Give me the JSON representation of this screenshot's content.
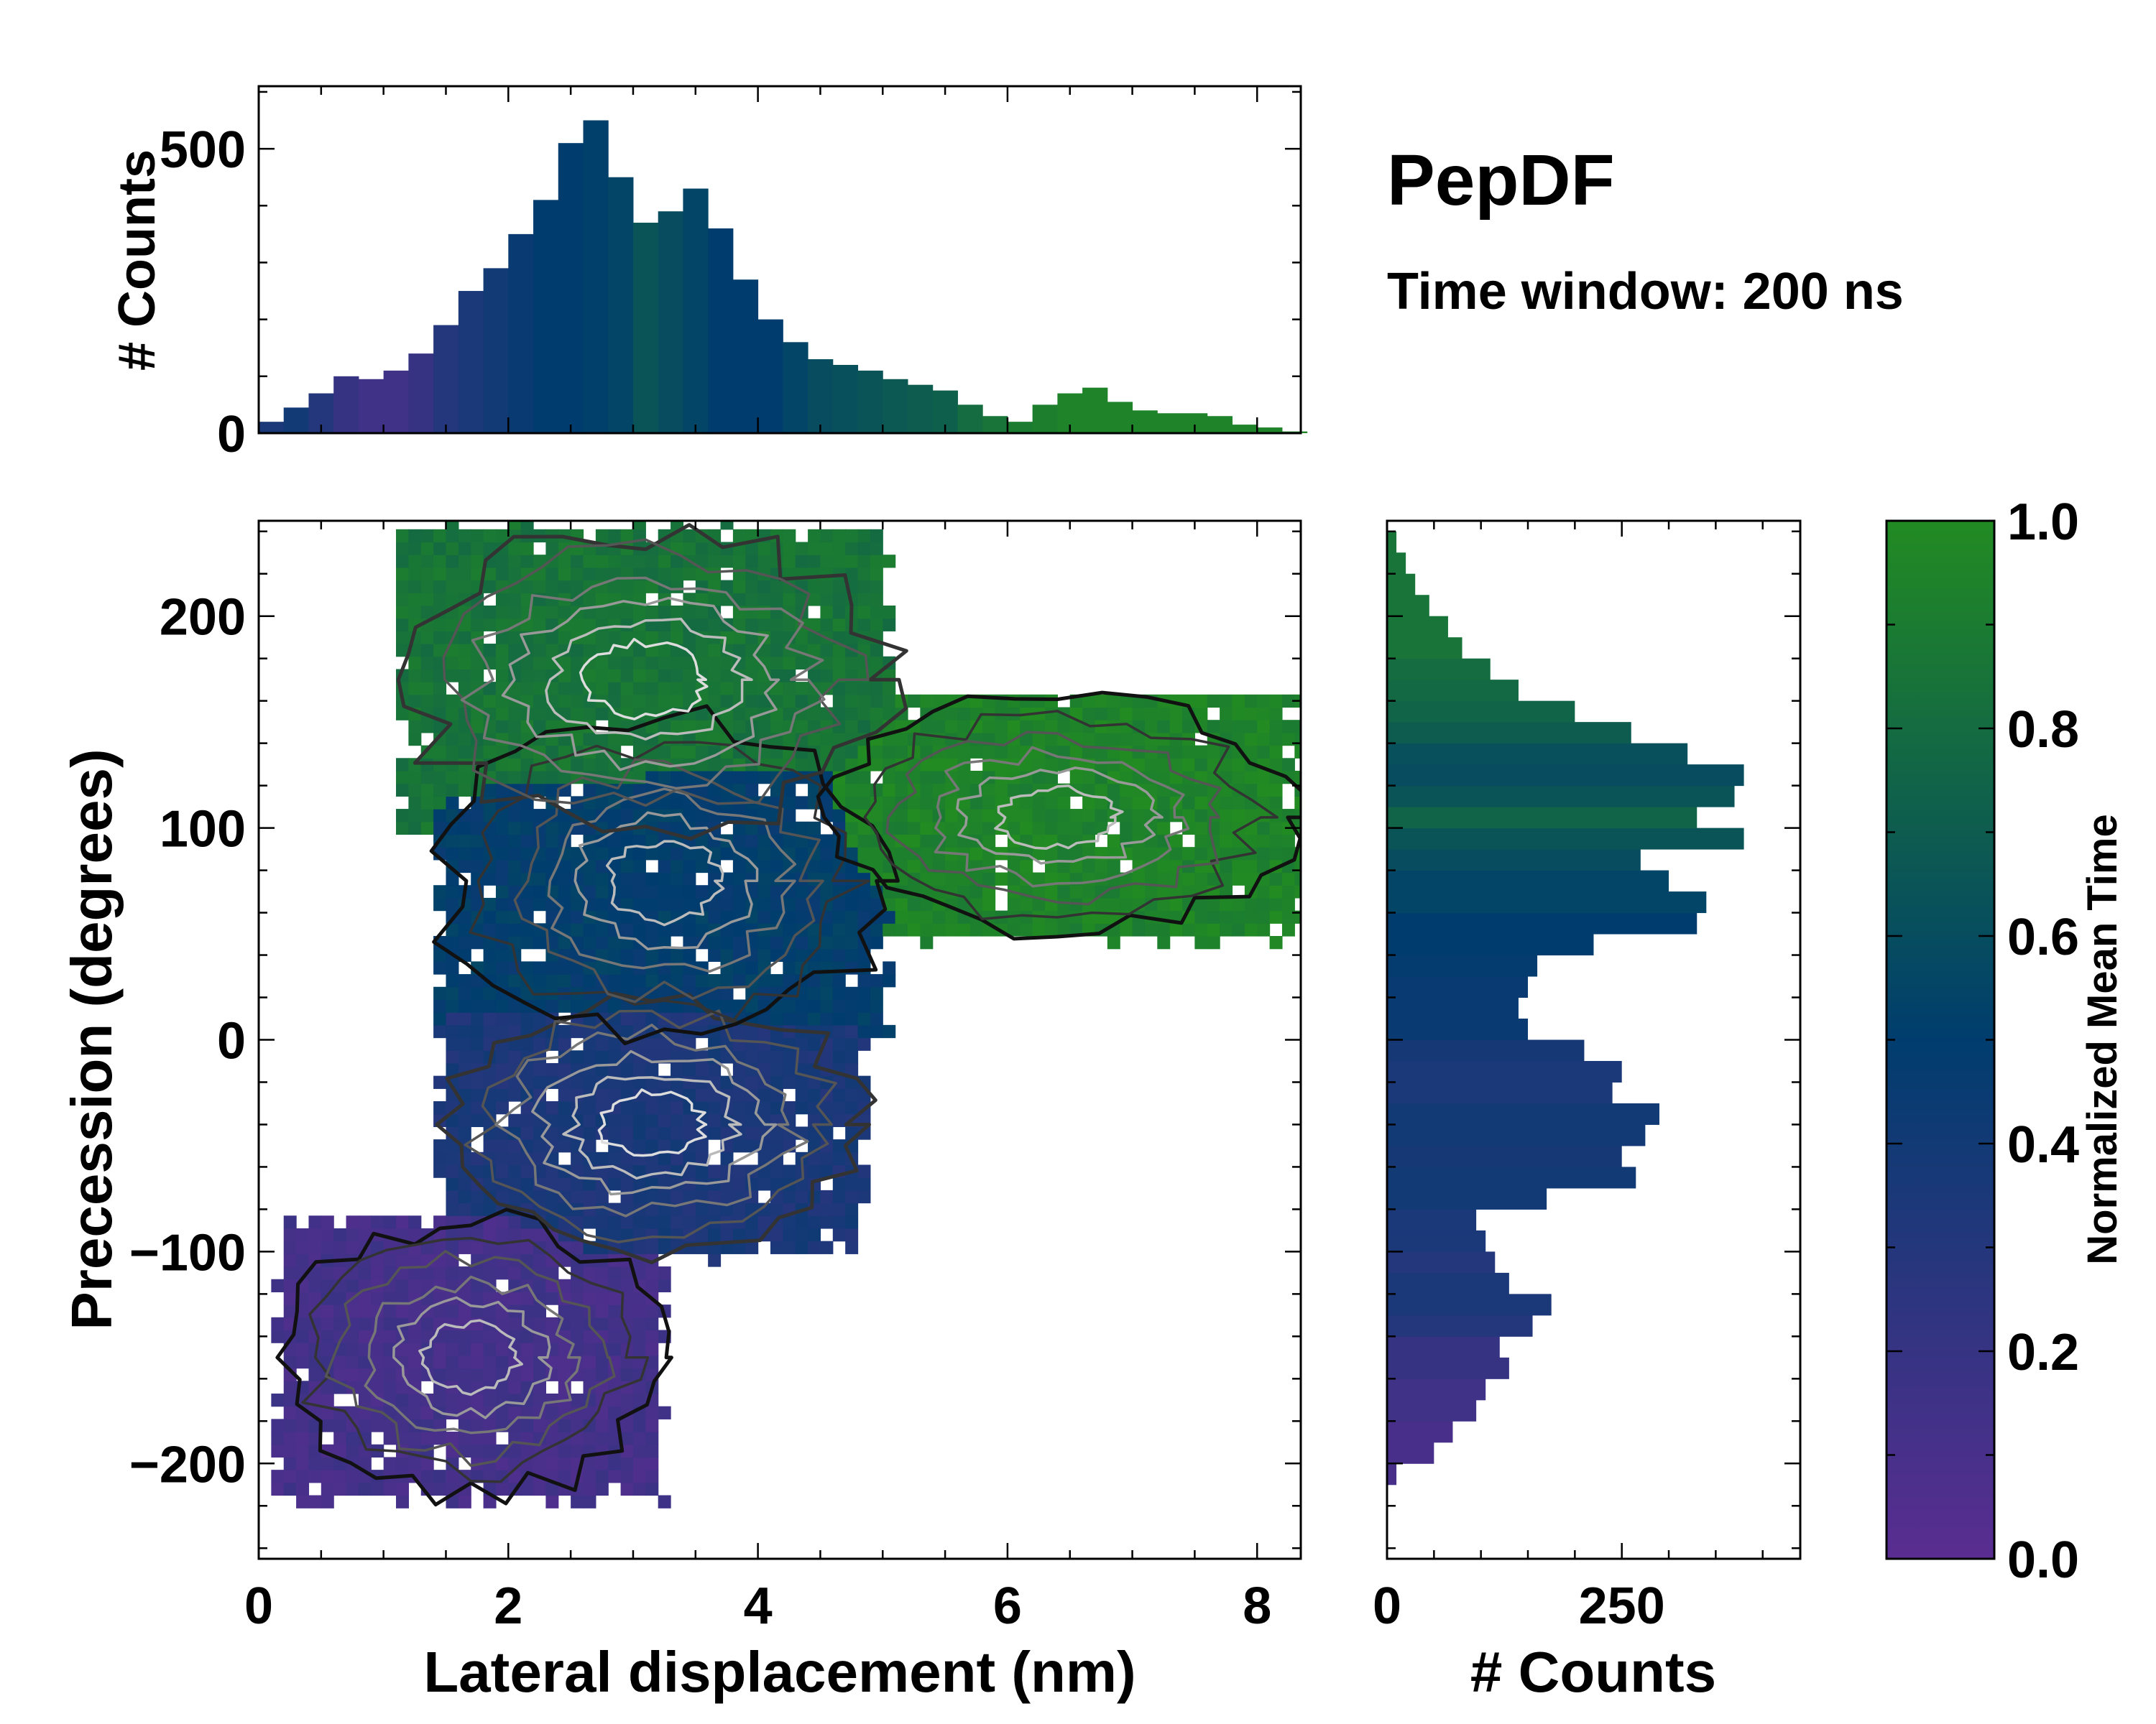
{
  "title": "PepDF",
  "subtitle": "Time window: 200 ns",
  "colormap": {
    "low": "#5a2d91",
    "mid": "#003d6e",
    "high": "#228b22"
  },
  "chart_data": [
    {
      "id": "top_histogram",
      "type": "bar",
      "ylabel": "# Counts",
      "xlim": [
        0,
        8.35
      ],
      "ylim": [
        0,
        610
      ],
      "yticks": [
        0,
        500
      ],
      "color_by": "Normalized Mean Time",
      "x": [
        0.1,
        0.3,
        0.5,
        0.7,
        0.9,
        1.1,
        1.3,
        1.5,
        1.7,
        1.9,
        2.1,
        2.3,
        2.5,
        2.7,
        2.9,
        3.1,
        3.3,
        3.5,
        3.7,
        3.9,
        4.1,
        4.3,
        4.5,
        4.7,
        4.9,
        5.1,
        5.3,
        5.5,
        5.7,
        5.9,
        6.1,
        6.3,
        6.5,
        6.7,
        6.9,
        7.1,
        7.3,
        7.5,
        7.7,
        7.9,
        8.1,
        8.3
      ],
      "values": [
        20,
        45,
        70,
        100,
        95,
        110,
        140,
        190,
        250,
        290,
        350,
        410,
        510,
        550,
        450,
        370,
        390,
        430,
        360,
        270,
        200,
        160,
        130,
        120,
        110,
        95,
        85,
        75,
        50,
        30,
        20,
        50,
        70,
        80,
        55,
        40,
        35,
        35,
        30,
        15,
        10,
        3
      ],
      "mean_time": [
        0.35,
        0.4,
        0.3,
        0.2,
        0.15,
        0.15,
        0.2,
        0.3,
        0.35,
        0.4,
        0.45,
        0.5,
        0.5,
        0.52,
        0.55,
        0.65,
        0.6,
        0.55,
        0.5,
        0.5,
        0.5,
        0.55,
        0.6,
        0.62,
        0.65,
        0.68,
        0.7,
        0.72,
        0.8,
        0.85,
        0.9,
        0.92,
        0.95,
        0.95,
        0.95,
        0.95,
        0.95,
        0.95,
        0.95,
        0.95,
        0.95,
        0.95
      ]
    },
    {
      "id": "main_2d",
      "type": "heatmap",
      "xlabel": "Lateral displacement (nm)",
      "ylabel": "Precession (degrees)",
      "xlim": [
        0,
        8.35
      ],
      "ylim": [
        -245,
        245
      ],
      "xticks": [
        0,
        2,
        4,
        6,
        8
      ],
      "yticks": [
        -200,
        -100,
        0,
        100,
        200
      ],
      "yticklabels": [
        "−200",
        "−100",
        "0",
        "100",
        "200"
      ],
      "colorbar_label": "Normalized Mean Time",
      "regions": [
        {
          "name": "lower-left basin",
          "x": [
            0.2,
            3.2
          ],
          "y": [
            -215,
            -85
          ],
          "mean_time": 0.12
        },
        {
          "name": "central-lower basin",
          "x": [
            1.5,
            4.8
          ],
          "y": [
            -100,
            20
          ],
          "mean_time": 0.35
        },
        {
          "name": "central-upper basin",
          "x": [
            1.5,
            5.0
          ],
          "y": [
            0,
            150
          ],
          "mean_time": 0.5
        },
        {
          "name": "top basin",
          "x": [
            1.2,
            5.0
          ],
          "y": [
            100,
            240
          ],
          "mean_time": 0.85
        },
        {
          "name": "right arm",
          "x": [
            4.5,
            8.3
          ],
          "y": [
            50,
            160
          ],
          "mean_time": 0.95
        }
      ]
    },
    {
      "id": "right_histogram",
      "type": "bar",
      "orientation": "horizontal",
      "xlabel": "# Counts",
      "xlim": [
        0,
        440
      ],
      "ylim": [
        -245,
        245
      ],
      "xticks": [
        0,
        250
      ],
      "color_by": "Normalized Mean Time",
      "y": [
        -205,
        -195,
        -185,
        -175,
        -165,
        -155,
        -145,
        -135,
        -125,
        -115,
        -105,
        -95,
        -85,
        -75,
        -65,
        -55,
        -45,
        -35,
        -25,
        -15,
        -5,
        5,
        15,
        25,
        35,
        45,
        55,
        65,
        75,
        85,
        95,
        105,
        115,
        125,
        135,
        145,
        155,
        165,
        175,
        185,
        195,
        205,
        215,
        225,
        235
      ],
      "values": [
        10,
        50,
        70,
        95,
        105,
        130,
        120,
        155,
        175,
        130,
        115,
        105,
        95,
        170,
        265,
        250,
        275,
        290,
        240,
        250,
        210,
        150,
        140,
        150,
        160,
        220,
        330,
        340,
        300,
        270,
        380,
        330,
        370,
        380,
        320,
        260,
        200,
        140,
        110,
        80,
        65,
        45,
        30,
        20,
        10
      ],
      "mean_time": [
        0.1,
        0.1,
        0.1,
        0.15,
        0.15,
        0.2,
        0.2,
        0.3,
        0.35,
        0.35,
        0.3,
        0.35,
        0.35,
        0.4,
        0.4,
        0.38,
        0.4,
        0.4,
        0.35,
        0.35,
        0.38,
        0.45,
        0.45,
        0.45,
        0.48,
        0.5,
        0.5,
        0.55,
        0.55,
        0.6,
        0.65,
        0.75,
        0.65,
        0.6,
        0.62,
        0.7,
        0.75,
        0.78,
        0.8,
        0.85,
        0.85,
        0.85,
        0.85,
        0.85,
        0.85
      ]
    },
    {
      "id": "colorbar",
      "type": "colorbar",
      "label": "Normalized Mean Time",
      "range": [
        0.0,
        1.0
      ],
      "ticks": [
        "0.0",
        "0.2",
        "0.4",
        "0.6",
        "0.8",
        "1.0"
      ]
    }
  ]
}
